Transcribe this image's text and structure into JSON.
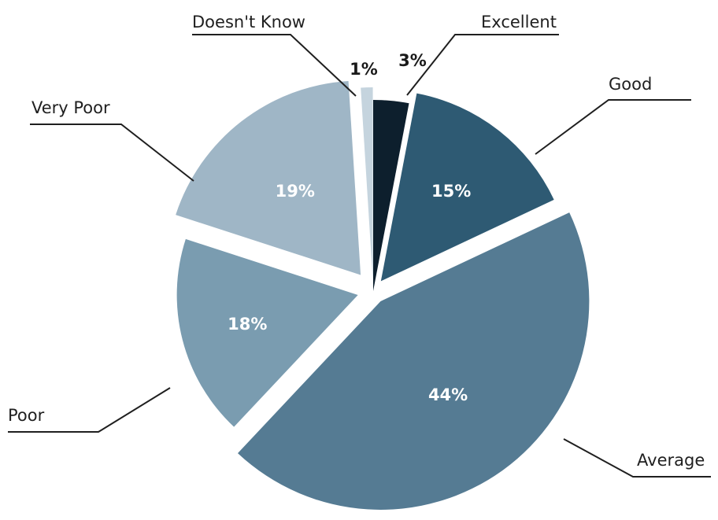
{
  "chart_data": {
    "type": "pie",
    "title": "",
    "slices": [
      {
        "label": "Excellent",
        "value": 3,
        "value_label": "3%",
        "color": "#0d1f2d"
      },
      {
        "label": "Good",
        "value": 15,
        "value_label": "15%",
        "color": "#2e5a73"
      },
      {
        "label": "Average",
        "value": 44,
        "value_label": "44%",
        "color": "#557b93"
      },
      {
        "label": "Poor",
        "value": 18,
        "value_label": "18%",
        "color": "#7a9cb0"
      },
      {
        "label": "Very Poor",
        "value": 19,
        "value_label": "19%",
        "color": "#9fb6c6"
      },
      {
        "label": "Doesn't Know",
        "value": 1,
        "value_label": "1%",
        "color": "#c5d4de"
      }
    ]
  }
}
